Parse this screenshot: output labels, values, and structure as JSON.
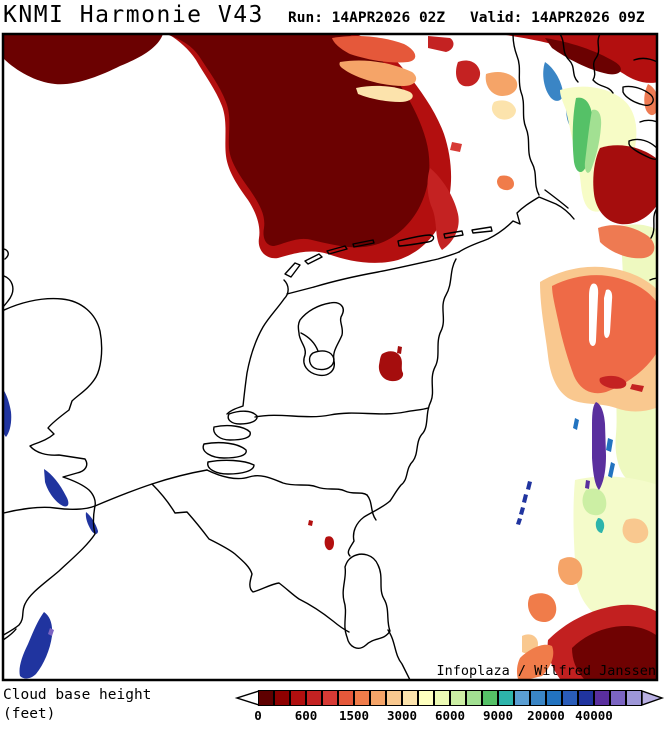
{
  "header": {
    "title": "KNMI Harmonie V43",
    "run": "Run: 14APR2026 02Z",
    "valid": "Valid: 14APR2026 09Z"
  },
  "map": {
    "attribution": "Infoplaza / Wilfred Janssen",
    "background": "#ffffff",
    "coastline_color": "#000000"
  },
  "legend": {
    "label_line1": "Cloud base height",
    "label_line2": "(feet)",
    "ticks": [
      "0",
      "600",
      "1500",
      "3000",
      "6000",
      "9000",
      "20000",
      "40000"
    ],
    "boxes_per_tick_interval": 3,
    "colors": [
      "#5e0000",
      "#8e0000",
      "#b00f0f",
      "#c42222",
      "#d73a35",
      "#e5583a",
      "#f07c4a",
      "#f5a468",
      "#f9c88f",
      "#fce3ac",
      "#feffbe",
      "#ecfab4",
      "#ccefa4",
      "#a2e092",
      "#55c167",
      "#2db4ab",
      "#5a9ed3",
      "#3a85c5",
      "#2273c0",
      "#2a5cb8",
      "#20349f",
      "#5a2f9e",
      "#7b64c2",
      "#9e97d8"
    ],
    "underflow_arrow_color": "#ffffff",
    "overflow_arrow_color": "#b9b0e4"
  }
}
